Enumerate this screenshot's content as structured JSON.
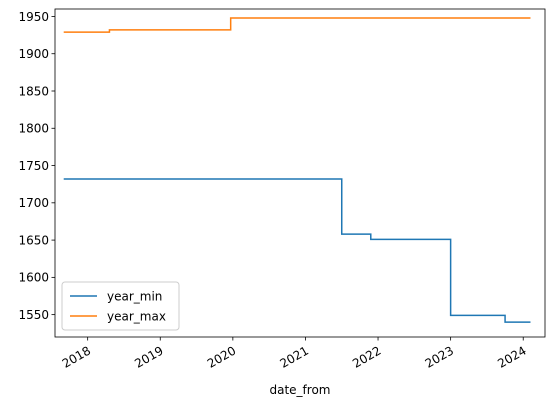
{
  "chart_data": {
    "type": "line",
    "title": "",
    "xlabel": "date_from",
    "ylabel": "",
    "xlim": [
      2017.55,
      2024.3
    ],
    "ylim": [
      1520,
      1960
    ],
    "x_ticks": [
      {
        "label": "2018",
        "value": 2018.0
      },
      {
        "label": "2019",
        "value": 2019.0
      },
      {
        "label": "2020",
        "value": 2020.0
      },
      {
        "label": "2021",
        "value": 2021.0
      },
      {
        "label": "2022",
        "value": 2022.0
      },
      {
        "label": "2023",
        "value": 2023.0
      },
      {
        "label": "2024",
        "value": 2024.0
      }
    ],
    "y_ticks": [
      1550,
      1600,
      1650,
      1700,
      1750,
      1800,
      1850,
      1900,
      1950
    ],
    "legend": "lower-left",
    "series": [
      {
        "name": "year_min",
        "color": "#1f77b4",
        "drawstyle": "steps-post",
        "x": [
          2017.67,
          2021.5,
          2021.9,
          2023.0,
          2023.75,
          2024.1
        ],
        "y": [
          1732,
          1658,
          1651,
          1549,
          1540,
          1540
        ]
      },
      {
        "name": "year_max",
        "color": "#ff7f0e",
        "drawstyle": "steps-post",
        "x": [
          2017.67,
          2018.3,
          2019.97,
          2024.1
        ],
        "y": [
          1929,
          1932,
          1948,
          1948
        ]
      }
    ]
  }
}
